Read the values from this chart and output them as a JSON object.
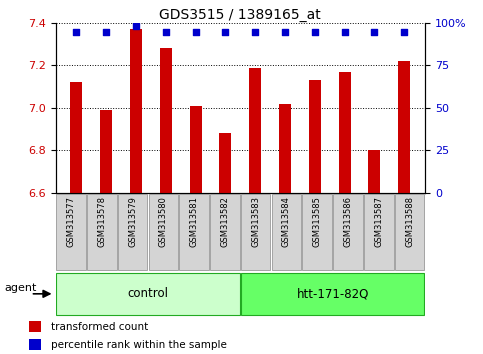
{
  "title": "GDS3515 / 1389165_at",
  "samples": [
    "GSM313577",
    "GSM313578",
    "GSM313579",
    "GSM313580",
    "GSM313581",
    "GSM313582",
    "GSM313583",
    "GSM313584",
    "GSM313585",
    "GSM313586",
    "GSM313587",
    "GSM313588"
  ],
  "bar_values": [
    7.12,
    6.99,
    7.37,
    7.28,
    7.01,
    6.88,
    7.19,
    7.02,
    7.13,
    7.17,
    6.8,
    7.22
  ],
  "percentile_values": [
    95,
    95,
    98,
    95,
    95,
    95,
    95,
    95,
    95,
    95,
    95,
    95
  ],
  "bar_color": "#cc0000",
  "percentile_color": "#0000cc",
  "ylim_left": [
    6.6,
    7.4
  ],
  "ylim_right": [
    0,
    100
  ],
  "yticks_left": [
    6.6,
    6.8,
    7.0,
    7.2,
    7.4
  ],
  "yticks_right": [
    0,
    25,
    50,
    75,
    100
  ],
  "ytick_labels_right": [
    "0",
    "25",
    "50",
    "75",
    "100%"
  ],
  "groups": [
    {
      "label": "control",
      "start": 0,
      "end": 6,
      "color": "#ccffcc"
    },
    {
      "label": "htt-171-82Q",
      "start": 6,
      "end": 12,
      "color": "#66ff66"
    }
  ],
  "agent_label": "agent",
  "legend_bar_label": "transformed count",
  "legend_pct_label": "percentile rank within the sample",
  "background_color": "#ffffff",
  "bar_width": 0.4,
  "tick_label_color_left": "#cc0000",
  "tick_label_color_right": "#0000cc",
  "cell_bg": "#d4d4d4",
  "cell_border": "#888888",
  "group_border": "#22aa22"
}
